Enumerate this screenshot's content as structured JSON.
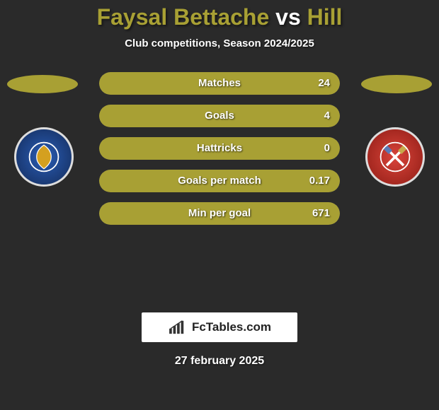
{
  "colors": {
    "player1": "#a8a034",
    "player2": "#a8a034",
    "background": "#2a2a2a"
  },
  "title": {
    "player1": "Faysal Bettache",
    "vs": "vs",
    "player2": "Hill"
  },
  "subtitle": "Club competitions, Season 2024/2025",
  "stats": [
    {
      "label": "Matches",
      "value": "24",
      "left_pct": 50,
      "right_pct": 50
    },
    {
      "label": "Goals",
      "value": "4",
      "left_pct": 50,
      "right_pct": 50
    },
    {
      "label": "Hattricks",
      "value": "0",
      "left_pct": 50,
      "right_pct": 50
    },
    {
      "label": "Goals per match",
      "value": "0.17",
      "left_pct": 50,
      "right_pct": 50
    },
    {
      "label": "Min per goal",
      "value": "671",
      "left_pct": 50,
      "right_pct": 50
    }
  ],
  "brand": "FcTables.com",
  "date": "27 february 2025"
}
